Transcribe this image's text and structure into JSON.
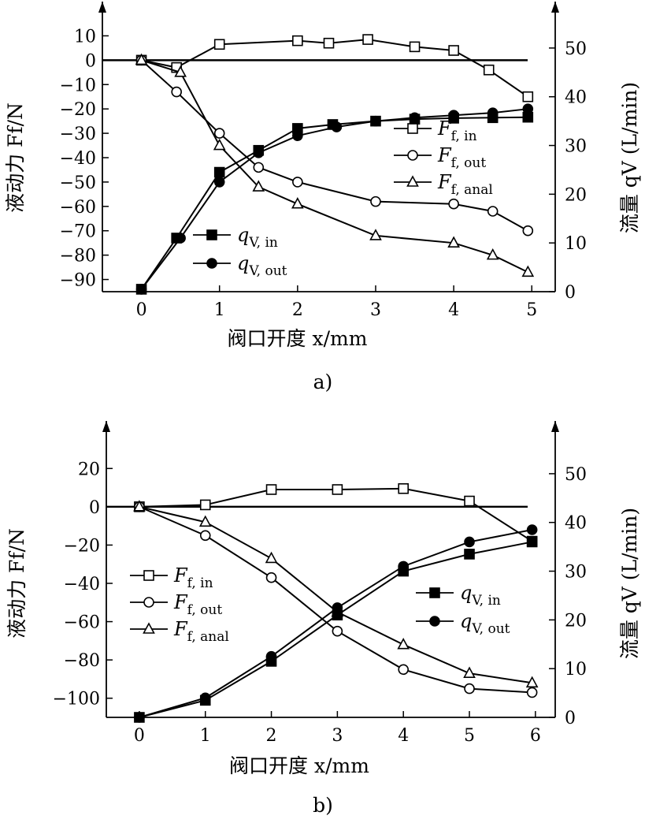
{
  "chart_data": [
    {
      "type": "line",
      "caption": "a)",
      "xlabel": "阀口开度 x/mm",
      "ylabel_left": "液动力 Ff/N",
      "ylabel_right": "流量 qV (L/min)",
      "xlim": [
        -0.5,
        5.3
      ],
      "xticks": [
        0,
        1,
        2,
        3,
        4,
        5
      ],
      "ylim_left": [
        -95,
        15
      ],
      "yticks_left": [
        10,
        0,
        -10,
        -20,
        -30,
        -40,
        -50,
        -60,
        -70,
        -80,
        -90
      ],
      "ylim_right": [
        0,
        55
      ],
      "yticks_right": [
        50,
        40,
        30,
        20,
        10,
        0
      ],
      "zero_line": true,
      "series": [
        {
          "name": "F f, in",
          "axis": "left",
          "marker": "square-open",
          "x": [
            0,
            0.45,
            1,
            2,
            2.4,
            2.9,
            3.5,
            4,
            4.45,
            4.95
          ],
          "y": [
            0,
            -3,
            6.5,
            8,
            7,
            8.5,
            5.5,
            4,
            -4,
            -15
          ]
        },
        {
          "name": "F f, out",
          "axis": "left",
          "marker": "circle-open",
          "x": [
            0,
            0.45,
            1,
            1.5,
            2,
            3,
            4,
            4.5,
            4.95
          ],
          "y": [
            0,
            -13,
            -30,
            -44,
            -50,
            -58,
            -59,
            -62,
            -70
          ]
        },
        {
          "name": "F f, anal",
          "axis": "left",
          "marker": "triangle-open",
          "x": [
            0,
            0.5,
            1,
            1.5,
            2,
            3,
            4,
            4.5,
            4.95
          ],
          "y": [
            0,
            -5,
            -35,
            -52,
            -59,
            -72,
            -75,
            -80,
            -87
          ]
        },
        {
          "name": "q V, in",
          "axis": "right",
          "marker": "square-filled",
          "x": [
            0,
            0.45,
            1,
            1.5,
            2,
            2.45,
            3,
            3.5,
            4,
            4.5,
            4.95
          ],
          "y": [
            0.5,
            11,
            24.5,
            29,
            33.5,
            34.3,
            35,
            35.4,
            35.6,
            35.7,
            35.8
          ]
        },
        {
          "name": "q V, out",
          "axis": "right",
          "marker": "circle-filled",
          "x": [
            0,
            0.5,
            1,
            1.5,
            2,
            2.5,
            3,
            3.5,
            4,
            4.5,
            4.95
          ],
          "y": [
            0.5,
            11,
            22.5,
            28.5,
            32,
            33.8,
            35,
            35.7,
            36.2,
            36.7,
            37.5
          ]
        }
      ],
      "legend_groups": [
        {
          "position": "right-middle",
          "entries": [
            {
              "main": "F",
              "sub": "f, in",
              "marker": "square-open"
            },
            {
              "main": "F",
              "sub": "f, out",
              "marker": "circle-open"
            },
            {
              "main": "F",
              "sub": "f, anal",
              "marker": "triangle-open"
            }
          ]
        },
        {
          "position": "left-bottom",
          "entries": [
            {
              "main": "q",
              "sub": "V, in",
              "marker": "square-filled"
            },
            {
              "main": "q",
              "sub": "V, out",
              "marker": "circle-filled"
            }
          ]
        }
      ]
    },
    {
      "type": "line",
      "caption": "b)",
      "xlabel": "阀口开度 x/mm",
      "ylabel_left": "液动力 Ff/N",
      "ylabel_right": "流量 qV (L/min)",
      "xlim": [
        -0.5,
        6.3
      ],
      "xticks": [
        0,
        1,
        2,
        3,
        4,
        5,
        6
      ],
      "ylim_left": [
        -110,
        30
      ],
      "yticks_left": [
        20,
        0,
        -20,
        -40,
        -60,
        -80,
        -100
      ],
      "ylim_right": [
        0,
        55
      ],
      "yticks_right": [
        50,
        40,
        30,
        20,
        10,
        0
      ],
      "zero_line": true,
      "series": [
        {
          "name": "F f, in",
          "axis": "left",
          "marker": "square-open",
          "x": [
            0,
            1,
            2,
            3,
            4,
            5,
            5.95
          ],
          "y": [
            0,
            1,
            9,
            9,
            9.5,
            3,
            -18
          ]
        },
        {
          "name": "F f, out",
          "axis": "left",
          "marker": "circle-open",
          "x": [
            0,
            1,
            2,
            3,
            4,
            5,
            5.95
          ],
          "y": [
            0,
            -15,
            -37,
            -65,
            -85,
            -95,
            -97
          ]
        },
        {
          "name": "F f, anal",
          "axis": "left",
          "marker": "triangle-open",
          "x": [
            0,
            1,
            2,
            3,
            4,
            5,
            5.95
          ],
          "y": [
            0,
            -8,
            -27,
            -55,
            -72,
            -87,
            -92
          ]
        },
        {
          "name": "q V, in",
          "axis": "right",
          "marker": "square-filled",
          "x": [
            0,
            1,
            2,
            3,
            4,
            5,
            5.95
          ],
          "y": [
            0,
            3.5,
            11.5,
            21,
            30,
            33.5,
            36
          ]
        },
        {
          "name": "q V, out",
          "axis": "right",
          "marker": "circle-filled",
          "x": [
            0,
            1,
            2,
            3,
            4,
            5,
            5.95
          ],
          "y": [
            0,
            4,
            12.5,
            22.5,
            31,
            36,
            38.5
          ]
        }
      ],
      "legend_groups": [
        {
          "position": "left-middle",
          "entries": [
            {
              "main": "F",
              "sub": "f, in",
              "marker": "square-open"
            },
            {
              "main": "F",
              "sub": "f, out",
              "marker": "circle-open"
            },
            {
              "main": "F",
              "sub": "f, anal",
              "marker": "triangle-open"
            }
          ]
        },
        {
          "position": "right-middle",
          "entries": [
            {
              "main": "q",
              "sub": "V, in",
              "marker": "square-filled"
            },
            {
              "main": "q",
              "sub": "V, out",
              "marker": "circle-filled"
            }
          ]
        }
      ]
    }
  ]
}
